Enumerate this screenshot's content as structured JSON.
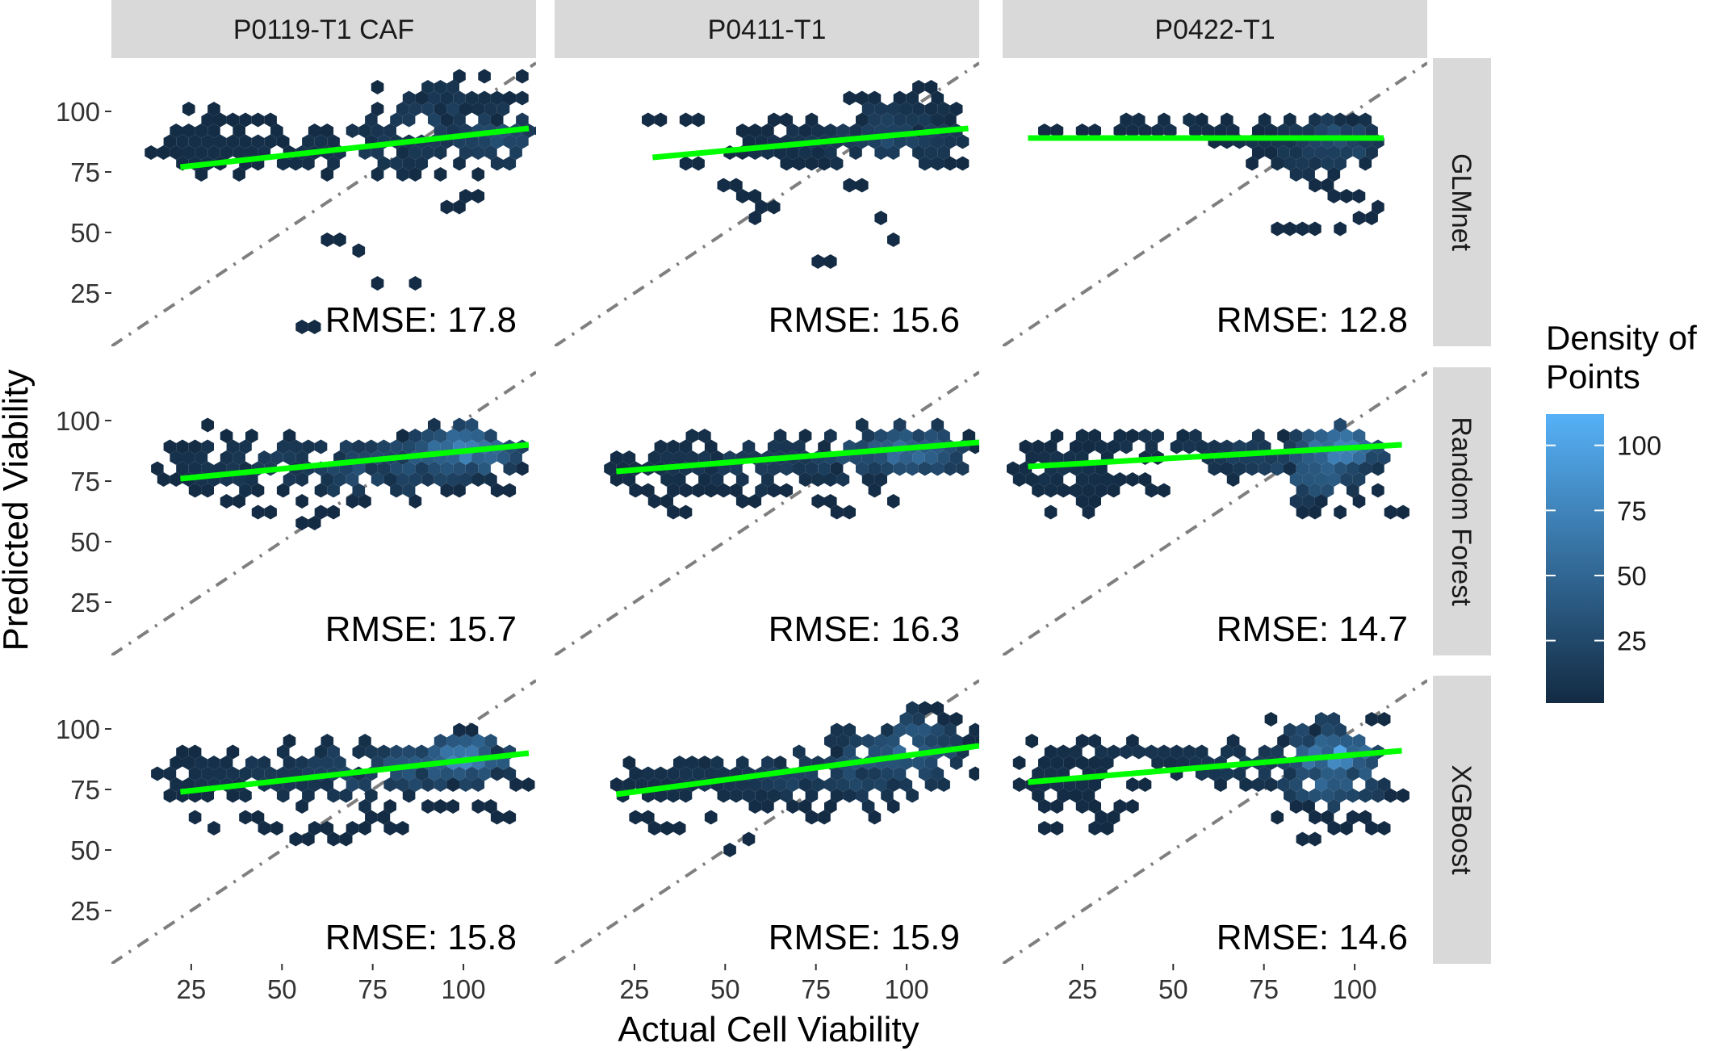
{
  "figure": {
    "xlabel": "Actual Cell Viability",
    "ylabel": "Predicted Viability",
    "columns": [
      "P0119-T1 CAF",
      "P0411-T1",
      "P0422-T1"
    ],
    "rows": [
      "GLMnet",
      "Random Forest",
      "XGBoost"
    ],
    "x_ticks": [
      25,
      50,
      75,
      100
    ],
    "y_ticks": [
      25,
      50,
      75,
      100
    ],
    "legend": {
      "title": "Density of Points",
      "ticks": [
        25,
        50,
        75,
        100
      ],
      "range": [
        1,
        112
      ],
      "color_low": "#132b43",
      "color_high": "#56b1f7"
    },
    "colors": {
      "strip_bg": "#d9d9d9",
      "fit_line": "#00ff00",
      "identity_line": "#7f7f7f"
    }
  },
  "chart_data": {
    "type": "hexbin-scatter-facets",
    "xlim": [
      3,
      120
    ],
    "ylim": [
      3,
      122
    ],
    "panels": [
      {
        "row": "GLMnet",
        "col": "P0119-T1 CAF",
        "rmse_label": "RMSE: 17.8",
        "fit": [
          [
            22,
            77
          ],
          [
            118,
            93
          ]
        ],
        "clusters": [
          [
            110,
            90,
            10,
            8,
            34
          ],
          [
            95,
            95,
            15,
            10,
            26
          ],
          [
            80,
            85,
            15,
            8,
            18
          ],
          [
            55,
            85,
            20,
            5,
            10
          ],
          [
            28,
            87,
            8,
            8,
            6
          ],
          [
            100,
            105,
            8,
            6,
            8
          ]
        ],
        "scatter": [
          [
            40,
            95
          ],
          [
            30,
            95
          ],
          [
            45,
            95
          ],
          [
            60,
            90
          ],
          [
            75,
            100
          ],
          [
            105,
            115
          ],
          [
            98,
            115
          ],
          [
            115,
            115
          ],
          [
            62,
            47
          ],
          [
            70,
            43
          ],
          [
            75,
            27
          ],
          [
            85,
            27
          ],
          [
            55,
            12
          ],
          [
            95,
            60
          ],
          [
            100,
            65
          ],
          [
            20,
            85
          ],
          [
            42,
            80
          ]
        ]
      },
      {
        "row": "GLMnet",
        "col": "P0411-T1",
        "rmse_label": "RMSE: 15.6",
        "fit": [
          [
            30,
            81
          ],
          [
            117,
            93
          ]
        ],
        "clusters": [
          [
            95,
            90,
            15,
            8,
            30
          ],
          [
            80,
            88,
            15,
            6,
            16
          ],
          [
            100,
            100,
            10,
            5,
            10
          ],
          [
            65,
            85,
            10,
            5,
            8
          ]
        ],
        "scatter": [
          [
            30,
            95
          ],
          [
            40,
            95
          ],
          [
            50,
            85
          ],
          [
            55,
            90
          ],
          [
            40,
            80
          ],
          [
            50,
            70
          ],
          [
            55,
            67
          ],
          [
            60,
            62
          ],
          [
            57,
            57
          ],
          [
            85,
            70
          ],
          [
            92,
            55
          ],
          [
            95,
            47
          ],
          [
            75,
            40
          ],
          [
            110,
            80
          ],
          [
            105,
            112
          ],
          [
            65,
            95
          ],
          [
            85,
            105
          ]
        ]
      },
      {
        "row": "GLMnet",
        "col": "P0422-T1",
        "rmse_label": "RMSE: 12.8",
        "fit": [
          [
            10,
            89
          ],
          [
            108,
            89
          ]
        ],
        "clusters": [
          [
            95,
            88,
            8,
            6,
            40
          ],
          [
            90,
            85,
            10,
            8,
            26
          ],
          [
            80,
            90,
            12,
            4,
            14
          ],
          [
            50,
            93,
            20,
            2,
            8
          ]
        ],
        "scatter": [
          [
            15,
            93
          ],
          [
            25,
            93
          ],
          [
            40,
            93
          ],
          [
            60,
            92
          ],
          [
            75,
            85
          ],
          [
            80,
            80
          ],
          [
            85,
            75
          ],
          [
            90,
            70
          ],
          [
            95,
            67
          ],
          [
            100,
            65
          ],
          [
            105,
            62
          ],
          [
            80,
            52
          ],
          [
            85,
            52
          ],
          [
            95,
            52
          ],
          [
            102,
            55
          ],
          [
            70,
            80
          ]
        ]
      },
      {
        "row": "Random Forest",
        "col": "P0119-T1 CAF",
        "rmse_label": "RMSE: 15.7",
        "fit": [
          [
            22,
            76
          ],
          [
            118,
            90
          ]
        ],
        "clusters": [
          [
            100,
            88,
            10,
            6,
            100
          ],
          [
            90,
            85,
            12,
            7,
            60
          ],
          [
            75,
            80,
            15,
            8,
            40
          ],
          [
            50,
            82,
            20,
            8,
            20
          ],
          [
            30,
            80,
            10,
            8,
            10
          ]
        ],
        "scatter": [
          [
            20,
            90
          ],
          [
            25,
            70
          ],
          [
            35,
            65
          ],
          [
            45,
            62
          ],
          [
            55,
            58
          ],
          [
            60,
            62
          ],
          [
            70,
            66
          ],
          [
            85,
            65
          ],
          [
            95,
            70
          ],
          [
            110,
            72
          ],
          [
            115,
            78
          ],
          [
            40,
            72
          ],
          [
            100,
            98
          ]
        ]
      },
      {
        "row": "Random Forest",
        "col": "P0411-T1",
        "rmse_label": "RMSE: 16.3",
        "fit": [
          [
            20,
            79
          ],
          [
            120,
            91
          ]
        ],
        "clusters": [
          [
            100,
            88,
            12,
            6,
            70
          ],
          [
            85,
            85,
            12,
            7,
            40
          ],
          [
            60,
            82,
            20,
            8,
            20
          ],
          [
            35,
            82,
            12,
            6,
            10
          ]
        ],
        "scatter": [
          [
            20,
            80
          ],
          [
            25,
            70
          ],
          [
            30,
            65
          ],
          [
            35,
            60
          ],
          [
            40,
            70
          ],
          [
            45,
            75
          ],
          [
            50,
            72
          ],
          [
            55,
            67
          ],
          [
            65,
            73
          ],
          [
            75,
            67
          ],
          [
            80,
            62
          ],
          [
            90,
            72
          ],
          [
            95,
            67
          ],
          [
            108,
            80
          ],
          [
            115,
            90
          ]
        ]
      },
      {
        "row": "Random Forest",
        "col": "P0422-T1",
        "rmse_label": "RMSE: 14.7",
        "fit": [
          [
            10,
            81
          ],
          [
            113,
            90
          ]
        ],
        "clusters": [
          [
            95,
            88,
            8,
            6,
            112
          ],
          [
            90,
            80,
            10,
            8,
            60
          ],
          [
            75,
            85,
            12,
            6,
            26
          ],
          [
            50,
            90,
            20,
            3,
            12
          ],
          [
            20,
            80,
            10,
            6,
            10
          ]
        ],
        "scatter": [
          [
            10,
            90
          ],
          [
            15,
            75
          ],
          [
            20,
            70
          ],
          [
            25,
            65
          ],
          [
            30,
            70
          ],
          [
            35,
            75
          ],
          [
            40,
            75
          ],
          [
            45,
            70
          ],
          [
            15,
            60
          ],
          [
            25,
            60
          ],
          [
            85,
            72
          ],
          [
            90,
            67
          ],
          [
            95,
            62
          ],
          [
            100,
            67
          ],
          [
            105,
            72
          ],
          [
            85,
            60
          ],
          [
            110,
            62
          ]
        ]
      },
      {
        "row": "XGBoost",
        "col": "P0119-T1 CAF",
        "rmse_label": "RMSE: 15.8",
        "fit": [
          [
            22,
            74
          ],
          [
            118,
            90
          ]
        ],
        "clusters": [
          [
            100,
            88,
            8,
            6,
            100
          ],
          [
            90,
            85,
            12,
            7,
            60
          ],
          [
            70,
            82,
            15,
            8,
            30
          ],
          [
            45,
            80,
            20,
            8,
            15
          ],
          [
            30,
            80,
            8,
            8,
            8
          ]
        ],
        "scatter": [
          [
            25,
            65
          ],
          [
            30,
            60
          ],
          [
            40,
            62
          ],
          [
            45,
            60
          ],
          [
            55,
            55
          ],
          [
            60,
            58
          ],
          [
            65,
            55
          ],
          [
            70,
            60
          ],
          [
            75,
            65
          ],
          [
            80,
            60
          ],
          [
            90,
            70
          ],
          [
            95,
            75
          ],
          [
            105,
            70
          ],
          [
            110,
            65
          ],
          [
            115,
            78
          ],
          [
            100,
            100
          ]
        ]
      },
      {
        "row": "XGBoost",
        "col": "P0411-T1",
        "rmse_label": "RMSE: 15.9",
        "fit": [
          [
            20,
            73
          ],
          [
            120,
            93
          ]
        ],
        "clusters": [
          [
            100,
            92,
            10,
            10,
            60
          ],
          [
            90,
            85,
            12,
            10,
            40
          ],
          [
            70,
            82,
            15,
            8,
            25
          ],
          [
            50,
            80,
            15,
            6,
            15
          ],
          [
            35,
            78,
            10,
            6,
            10
          ]
        ],
        "scatter": [
          [
            20,
            75
          ],
          [
            25,
            65
          ],
          [
            30,
            60
          ],
          [
            35,
            57
          ],
          [
            45,
            62
          ],
          [
            50,
            52
          ],
          [
            55,
            55
          ],
          [
            60,
            70
          ],
          [
            70,
            70
          ],
          [
            75,
            62
          ],
          [
            85,
            72
          ],
          [
            90,
            62
          ],
          [
            95,
            67
          ],
          [
            105,
            110
          ],
          [
            110,
            105
          ],
          [
            118,
            95
          ]
        ]
      },
      {
        "row": "XGBoost",
        "col": "P0422-T1",
        "rmse_label": "RMSE: 14.6",
        "fit": [
          [
            10,
            78
          ],
          [
            113,
            91
          ]
        ],
        "clusters": [
          [
            95,
            88,
            8,
            6,
            112
          ],
          [
            92,
            80,
            10,
            10,
            60
          ],
          [
            90,
            98,
            8,
            5,
            40
          ],
          [
            70,
            85,
            15,
            6,
            20
          ],
          [
            40,
            90,
            20,
            3,
            10
          ],
          [
            20,
            80,
            10,
            6,
            8
          ]
        ],
        "scatter": [
          [
            10,
            75
          ],
          [
            15,
            70
          ],
          [
            20,
            72
          ],
          [
            25,
            70
          ],
          [
            30,
            65
          ],
          [
            35,
            70
          ],
          [
            40,
            78
          ],
          [
            15,
            57
          ],
          [
            30,
            57
          ],
          [
            85,
            70
          ],
          [
            90,
            62
          ],
          [
            95,
            57
          ],
          [
            100,
            62
          ],
          [
            105,
            57
          ],
          [
            110,
            72
          ],
          [
            85,
            55
          ],
          [
            105,
            102
          ]
        ]
      }
    ]
  }
}
